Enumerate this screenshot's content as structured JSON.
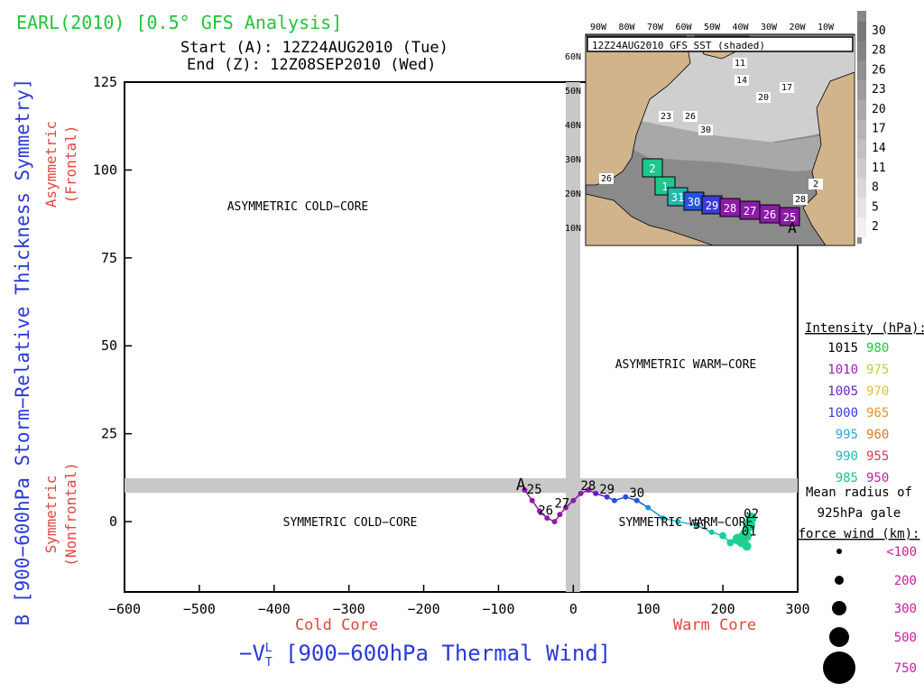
{
  "header": {
    "title": "EARL(2010) [0.5° GFS Analysis]",
    "start_line": "Start (A): 12Z24AUG2010 (Tue)",
    "end_line": "End (Z): 12Z08SEP2010 (Wed)"
  },
  "chart_data": {
    "type": "scatter",
    "xlabel": "−V",
    "xlabel_sup": "L",
    "xlabel_sub": "T",
    "xlabel_rest": " [900−600hPa Thermal Wind]",
    "ylabel": "B [900−600hPa Storm−Relative Thickness Symmetry]",
    "xlim": [
      -600,
      300
    ],
    "ylim": [
      -20,
      125
    ],
    "xticks": [
      -600,
      -500,
      -400,
      -300,
      -200,
      -100,
      0,
      100,
      200,
      300
    ],
    "xtick_labels": [
      "−600",
      "−500",
      "−400",
      "−300",
      "−200",
      "−100",
      "0",
      "100",
      "200",
      "300"
    ],
    "yticks": [
      0,
      25,
      50,
      75,
      100,
      125
    ],
    "ytick_labels": [
      "0",
      "25",
      "50",
      "75",
      "100",
      "125"
    ],
    "thresholds": {
      "x": 0,
      "y": 10
    },
    "axis_side_labels": {
      "cold_core": "Cold Core",
      "warm_core": "Warm Core",
      "asymmetric": "Asymmetric",
      "frontal": "(Frontal)",
      "symmetric": "Symmetric",
      "nonfrontal": "(Nonfrontal)"
    },
    "quadrants": {
      "asym_cold": "ASYMMETRIC COLD−CORE",
      "asym_warm": "ASYMMETRIC WARM−CORE",
      "sym_cold": "SYMMETRIC COLD−CORE",
      "sym_warm": "SYMMETRIC WARM−CORE"
    },
    "track": [
      {
        "x": -65,
        "y": 9,
        "color": "#8b1ca6",
        "r": 3
      },
      {
        "x": -55,
        "y": 6,
        "color": "#8b1ca6",
        "r": 3
      },
      {
        "x": -45,
        "y": 3,
        "color": "#8b1ca6",
        "r": 3
      },
      {
        "x": -35,
        "y": 1,
        "color": "#8b1ca6",
        "r": 3
      },
      {
        "x": -25,
        "y": 0,
        "color": "#8b1ca6",
        "r": 3
      },
      {
        "x": -18,
        "y": 2,
        "color": "#8b1ca6",
        "r": 3
      },
      {
        "x": -10,
        "y": 4,
        "color": "#8b1ca6",
        "r": 3
      },
      {
        "x": 0,
        "y": 6,
        "color": "#8b1ca6",
        "r": 3
      },
      {
        "x": 10,
        "y": 8,
        "color": "#8b1ca6",
        "r": 3
      },
      {
        "x": 20,
        "y": 9,
        "color": "#8b1ca6",
        "r": 3
      },
      {
        "x": 30,
        "y": 8,
        "color": "#6a1cc8",
        "r": 3
      },
      {
        "x": 45,
        "y": 7,
        "color": "#3b3be0",
        "r": 3
      },
      {
        "x": 55,
        "y": 6,
        "color": "#2255e0",
        "r": 3
      },
      {
        "x": 70,
        "y": 7,
        "color": "#2255e0",
        "r": 3
      },
      {
        "x": 85,
        "y": 6,
        "color": "#2255e0",
        "r": 3
      },
      {
        "x": 100,
        "y": 4,
        "color": "#1b95d6",
        "r": 3
      },
      {
        "x": 120,
        "y": 1,
        "color": "#1bb3d6",
        "r": 3
      },
      {
        "x": 140,
        "y": 0,
        "color": "#1bc0c8",
        "r": 3
      },
      {
        "x": 165,
        "y": -1,
        "color": "#1bc0b0",
        "r": 3
      },
      {
        "x": 185,
        "y": -3,
        "color": "#1bc0b0",
        "r": 3
      },
      {
        "x": 200,
        "y": -4,
        "color": "#1ccfa0",
        "r": 4
      },
      {
        "x": 210,
        "y": -6,
        "color": "#1ccfa0",
        "r": 4
      },
      {
        "x": 220,
        "y": -5,
        "color": "#20d090",
        "r": 6
      },
      {
        "x": 230,
        "y": -4,
        "color": "#20d090",
        "r": 7
      },
      {
        "x": 235,
        "y": -1,
        "color": "#20d090",
        "r": 7
      },
      {
        "x": 238,
        "y": 1,
        "color": "#20d090",
        "r": 6
      },
      {
        "x": 232,
        "y": -7,
        "color": "#20d090",
        "r": 5
      },
      {
        "x": 225,
        "y": -6,
        "color": "#20d090",
        "r": 5
      }
    ],
    "track_labels": [
      {
        "text": "A",
        "x": -70,
        "y": 9,
        "size": 18
      },
      {
        "text": "25",
        "x": -52,
        "y": 8,
        "size": 14
      },
      {
        "text": "26",
        "x": -37,
        "y": 2,
        "size": 14
      },
      {
        "text": "27",
        "x": -15,
        "y": 4,
        "size": 14
      },
      {
        "text": "28",
        "x": 20,
        "y": 9,
        "size": 14
      },
      {
        "text": "29",
        "x": 45,
        "y": 8,
        "size": 14
      },
      {
        "text": "30",
        "x": 85,
        "y": 7,
        "size": 14
      },
      {
        "text": "31",
        "x": 170,
        "y": -2,
        "size": 14
      },
      {
        "text": "02",
        "x": 238,
        "y": 1,
        "size": 14
      },
      {
        "text": "01",
        "x": 235,
        "y": -4,
        "size": 14
      }
    ]
  },
  "intensity_legend": {
    "title": "Intensity (hPa):",
    "rows": [
      {
        "a": "1015",
        "ac": "#000000",
        "b": "980",
        "bc": "#22c43a"
      },
      {
        "a": "1010",
        "ac": "#9b1fb0",
        "b": "975",
        "bc": "#b6d23a"
      },
      {
        "a": "1005",
        "ac": "#6a22c8",
        "b": "970",
        "bc": "#e2c23a"
      },
      {
        "a": "1000",
        "ac": "#3b3bdc",
        "b": "965",
        "bc": "#e0962a"
      },
      {
        "a": "995",
        "ac": "#2aa8d8",
        "b": "960",
        "bc": "#d8782a"
      },
      {
        "a": "990",
        "ac": "#22b8b0",
        "b": "955",
        "bc": "#d63a52"
      },
      {
        "a": "985",
        "ac": "#20c48c",
        "b": "950",
        "bc": "#c41f9b"
      }
    ]
  },
  "radius_legend": {
    "title_lines": [
      "Mean radius of",
      "925hPa gale",
      "force wind (km):"
    ],
    "rows": [
      {
        "label": "<100",
        "r": 3
      },
      {
        "label": "200",
        "r": 5
      },
      {
        "label": "300",
        "r": 8
      },
      {
        "label": "500",
        "r": 11
      },
      {
        "label": "750",
        "r": 18
      }
    ]
  },
  "inset": {
    "title": "12Z24AUG2010 GFS SST (shaded)",
    "lon_labels": [
      "90W",
      "80W",
      "70W",
      "60W",
      "50W",
      "40W",
      "30W",
      "20W",
      "10W"
    ],
    "lat_labels": [
      "60N",
      "50N",
      "40N",
      "30N",
      "20N",
      "10N"
    ],
    "sst_contours": [
      "11",
      "14",
      "17",
      "20",
      "20",
      "23",
      "26",
      "30",
      "26",
      "28",
      "2"
    ],
    "colorbar": [
      "30",
      "28",
      "26",
      "23",
      "20",
      "17",
      "14",
      "11",
      "8",
      "5",
      "2"
    ],
    "track_days": [
      "A",
      "25",
      "26",
      "27",
      "28",
      "29",
      "30",
      "31",
      "1",
      "2"
    ]
  }
}
